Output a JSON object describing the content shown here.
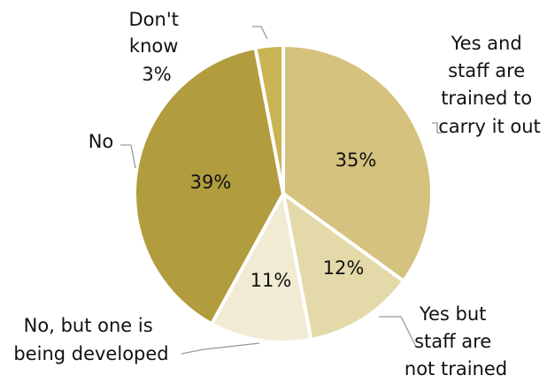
{
  "chart_data": {
    "type": "pie",
    "title": "",
    "start_angle_deg": 0,
    "direction": "clockwise",
    "slices": [
      {
        "label_lines": [
          "Yes and",
          "staff are",
          "trained to",
          "carry it out"
        ],
        "value": 35,
        "value_label": "35%",
        "color": "#d4c27e"
      },
      {
        "label_lines": [
          "Yes but",
          "staff are",
          "not trained"
        ],
        "value": 12,
        "value_label": "12%",
        "color": "#e3d9a9"
      },
      {
        "label_lines": [
          "No, but one is",
          "being developed"
        ],
        "value": 11,
        "value_label": "11%",
        "color": "#f1ebd4"
      },
      {
        "label_lines": [
          "No"
        ],
        "value": 39,
        "value_label": "39%",
        "color": "#b19c3e"
      },
      {
        "label_lines": [
          "Don't",
          "know",
          "3%"
        ],
        "value": 3,
        "value_label": "",
        "color": "#c8b453"
      }
    ]
  }
}
